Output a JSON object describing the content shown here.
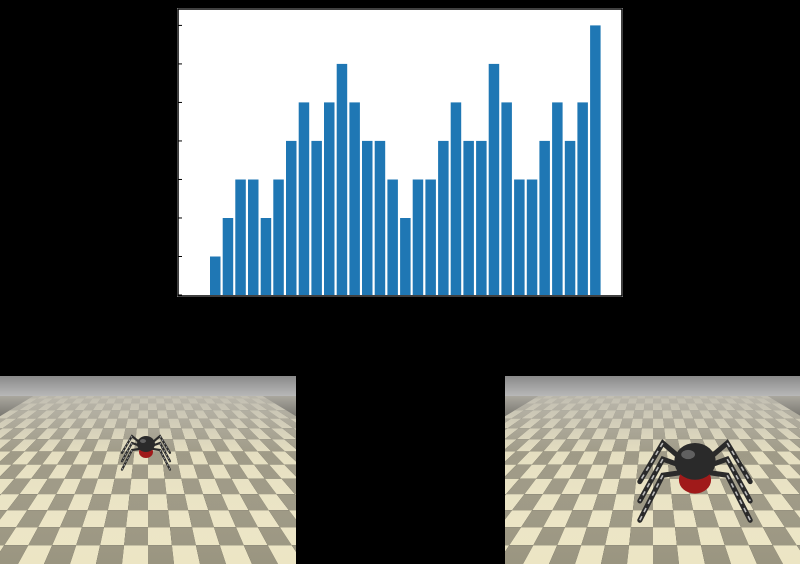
{
  "chart_data": {
    "type": "bar",
    "values": [
      1,
      2,
      3,
      3,
      2,
      3,
      4,
      5,
      4,
      5,
      6,
      5,
      4,
      4,
      3,
      2,
      3,
      3,
      4,
      5,
      4,
      4,
      6,
      5,
      3,
      3,
      4,
      5,
      4,
      5,
      7
    ],
    "ylim": [
      0,
      7.4
    ],
    "bar_color": "#1f77b4",
    "grid": false,
    "annotations": [
      {
        "label": "",
        "bar_index": 0
      },
      {
        "label": "",
        "bar_index": 30
      }
    ]
  },
  "frames": [
    {
      "name": "frame-left",
      "spider_scale": "small"
    },
    {
      "name": "frame-right",
      "spider_scale": "large"
    }
  ],
  "colors": {
    "background": "#000000",
    "floor_light": "#ece5c4",
    "floor_dark": "#9a9580",
    "wall": "#9c9c9c",
    "spider_body": "#2a2a2a",
    "spider_mark": "#a01a1a"
  }
}
